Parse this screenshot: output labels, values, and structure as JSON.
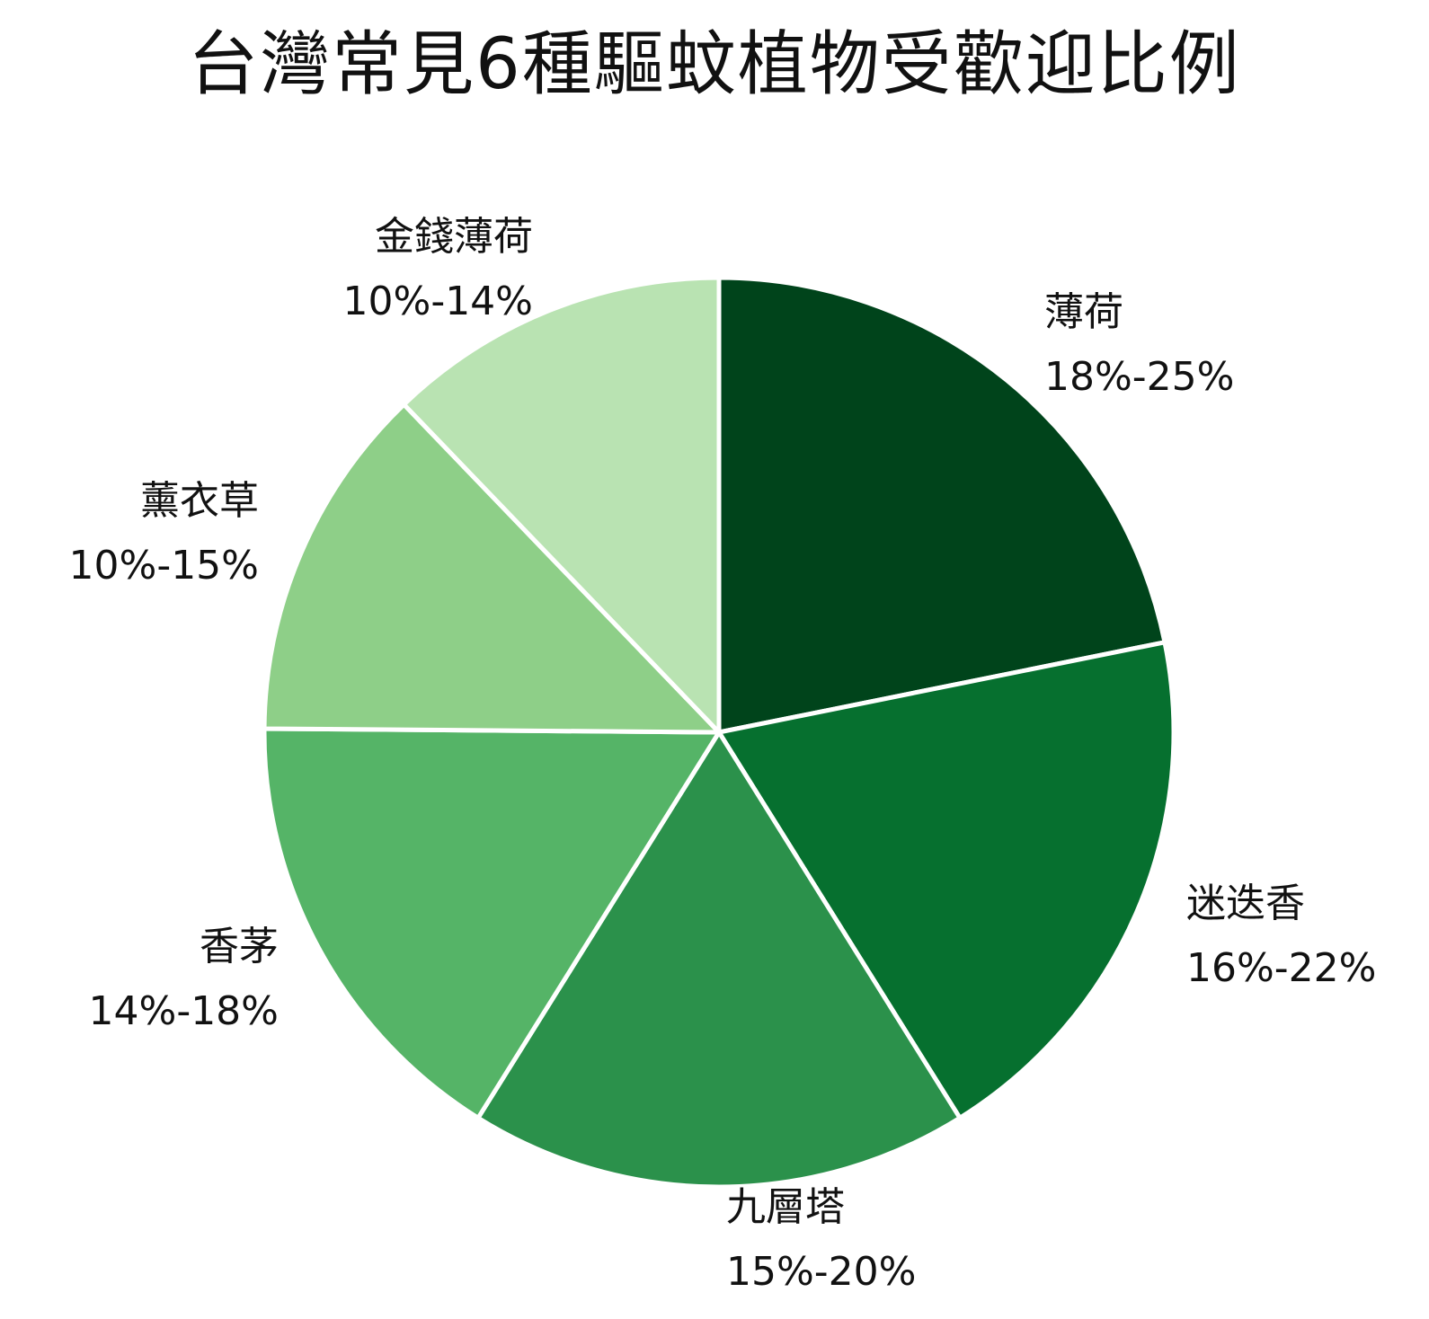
{
  "chart_data": {
    "type": "pie",
    "title": "台灣常見6種驅蚊植物受歡迎比例",
    "start_angle_deg": 0,
    "direction": "clockwise",
    "slices": [
      {
        "label": "薄荷",
        "range": "18%-25%",
        "value": 21.5,
        "color": "#00441b"
      },
      {
        "label": "迷迭香",
        "range": "16%-22%",
        "value": 19.0,
        "color": "#06702f"
      },
      {
        "label": "九層塔",
        "range": "15%-20%",
        "value": 17.5,
        "color": "#2b914b"
      },
      {
        "label": "香茅",
        "range": "14%-18%",
        "value": 16.0,
        "color": "#55b467"
      },
      {
        "label": "薰衣草",
        "range": "10%-15%",
        "value": 12.5,
        "color": "#8ecf88"
      },
      {
        "label": "金錢薄荷",
        "range": "10%-14%",
        "value": 12.0,
        "color": "#b9e3b2"
      }
    ],
    "slice_border_color": "#ffffff",
    "legend": "none",
    "grid": false
  }
}
